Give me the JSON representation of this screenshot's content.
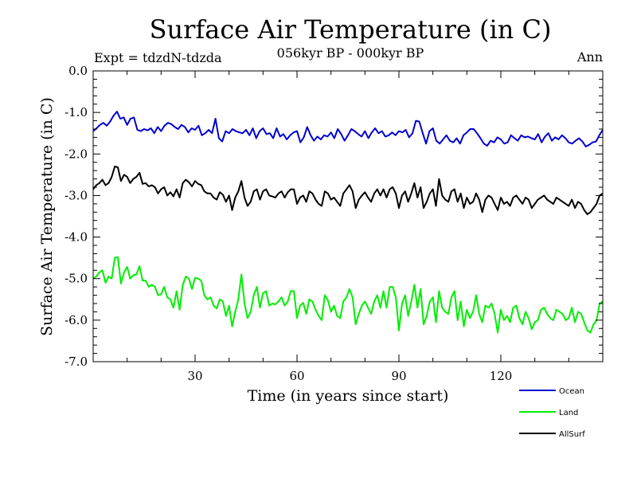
{
  "chart_data": {
    "type": "line",
    "title": "Surface Air Temperature (in C)",
    "subtitle": "056kyr BP - 000kyr BP",
    "left_label": "Expt = tdzdN-tdzda",
    "right_label": "Ann",
    "xlabel": "Time (in years since start)",
    "ylabel": "Surface Air Temperature (in C)",
    "xlim": [
      0,
      150
    ],
    "ylim": [
      -7.0,
      0.0
    ],
    "xticks": [
      30,
      60,
      90,
      120
    ],
    "yticks": [
      0.0,
      -1.0,
      -2.0,
      -3.0,
      -4.0,
      -5.0,
      -6.0,
      -7.0
    ],
    "ytick_labels": [
      "0.0",
      "-1.0",
      "-2.0",
      "-3.0",
      "-4.0",
      "-5.0",
      "-6.0",
      "-7.0"
    ],
    "series": [
      {
        "name": "Ocean",
        "color": "#0000d0",
        "values": [
          -1.45,
          -1.38,
          -1.3,
          -1.25,
          -1.32,
          -1.22,
          -1.08,
          -0.98,
          -1.15,
          -1.12,
          -1.3,
          -1.15,
          -1.12,
          -1.42,
          -1.45,
          -1.4,
          -1.43,
          -1.38,
          -1.5,
          -1.35,
          -1.45,
          -1.32,
          -1.25,
          -1.28,
          -1.35,
          -1.4,
          -1.3,
          -1.35,
          -1.48,
          -1.38,
          -1.42,
          -1.32,
          -1.55,
          -1.5,
          -1.42,
          -1.5,
          -1.15,
          -1.62,
          -1.7,
          -1.45,
          -1.5,
          -1.4,
          -1.45,
          -1.48,
          -1.5,
          -1.42,
          -1.55,
          -1.38,
          -1.62,
          -1.45,
          -1.38,
          -1.52,
          -1.5,
          -1.62,
          -1.38,
          -1.58,
          -1.52,
          -1.65,
          -1.55,
          -1.48,
          -1.45,
          -1.72,
          -1.6,
          -1.35,
          -1.55,
          -1.68,
          -1.58,
          -1.65,
          -1.55,
          -1.58,
          -1.48,
          -1.62,
          -1.4,
          -1.52,
          -1.68,
          -1.55,
          -1.4,
          -1.45,
          -1.52,
          -1.58,
          -1.45,
          -1.62,
          -1.48,
          -1.38,
          -1.5,
          -1.45,
          -1.58,
          -1.55,
          -1.48,
          -1.55,
          -1.45,
          -1.48,
          -1.42,
          -1.6,
          -1.5,
          -1.2,
          -1.22,
          -1.5,
          -1.75,
          -1.45,
          -1.38,
          -1.68,
          -1.75,
          -1.65,
          -1.55,
          -1.68,
          -1.72,
          -1.62,
          -1.75,
          -1.55,
          -1.48,
          -1.4,
          -1.4,
          -1.5,
          -1.62,
          -1.75,
          -1.8,
          -1.68,
          -1.72,
          -1.6,
          -1.65,
          -1.75,
          -1.72,
          -1.55,
          -1.62,
          -1.68,
          -1.55,
          -1.6,
          -1.58,
          -1.62,
          -1.65,
          -1.52,
          -1.72,
          -1.58,
          -1.5,
          -1.68,
          -1.6,
          -1.65,
          -1.55,
          -1.62,
          -1.72,
          -1.75,
          -1.68,
          -1.62,
          -1.7,
          -1.82,
          -1.78,
          -1.72,
          -1.7,
          -1.55,
          -1.42
        ]
      },
      {
        "name": "Land",
        "color": "#00ee00",
        "values": [
          -5.0,
          -4.95,
          -4.85,
          -4.8,
          -5.1,
          -4.95,
          -5.0,
          -4.5,
          -4.48,
          -5.12,
          -4.85,
          -4.72,
          -5.0,
          -4.92,
          -4.9,
          -4.7,
          -5.05,
          -5.05,
          -5.2,
          -5.15,
          -5.2,
          -5.4,
          -5.38,
          -5.2,
          -5.45,
          -5.5,
          -5.7,
          -5.3,
          -5.75,
          -5.15,
          -4.95,
          -5.0,
          -5.25,
          -4.98,
          -5.0,
          -5.05,
          -5.4,
          -5.5,
          -5.45,
          -5.65,
          -5.72,
          -5.5,
          -5.55,
          -5.9,
          -5.65,
          -6.15,
          -5.8,
          -5.5,
          -4.9,
          -5.6,
          -5.95,
          -5.8,
          -5.4,
          -5.2,
          -5.7,
          -5.35,
          -5.3,
          -5.65,
          -5.6,
          -5.62,
          -5.55,
          -5.45,
          -5.65,
          -5.55,
          -5.3,
          -5.3,
          -5.95,
          -5.65,
          -5.58,
          -5.85,
          -5.5,
          -5.55,
          -5.75,
          -5.9,
          -6.0,
          -5.4,
          -5.52,
          -5.8,
          -5.65,
          -5.9,
          -5.95,
          -5.55,
          -5.45,
          -5.25,
          -5.45,
          -6.1,
          -5.85,
          -5.65,
          -5.55,
          -5.7,
          -5.85,
          -5.55,
          -5.4,
          -5.7,
          -5.3,
          -5.7,
          -5.2,
          -5.2,
          -5.45,
          -6.25,
          -5.6,
          -5.4,
          -5.9,
          -5.55,
          -5.15,
          -5.7,
          -5.25,
          -6.1,
          -5.9,
          -5.55,
          -5.45,
          -6.05,
          -5.3,
          -5.7,
          -5.8,
          -5.85,
          -5.45,
          -5.3,
          -6.0,
          -5.55,
          -6.15,
          -5.75,
          -5.95,
          -5.8,
          -5.4,
          -5.85,
          -6.05,
          -5.65,
          -5.7,
          -5.6,
          -5.85,
          -6.3,
          -5.75,
          -6.0,
          -5.9,
          -6.05,
          -5.7,
          -5.65,
          -5.95,
          -6.1,
          -5.8,
          -5.95,
          -6.22,
          -6.05,
          -6.0,
          -5.75,
          -5.7,
          -5.85,
          -5.95,
          -6.0,
          -5.75,
          -5.8,
          -5.85,
          -6.0,
          -5.95,
          -5.7,
          -6.05,
          -5.8,
          -5.85,
          -6.05,
          -6.25,
          -6.3,
          -6.1,
          -6.0,
          -5.6,
          -5.55
        ]
      },
      {
        "name": "AllSurf",
        "color": "#000000",
        "values": [
          -2.85,
          -2.75,
          -2.7,
          -2.62,
          -2.75,
          -2.7,
          -2.55,
          -2.3,
          -2.32,
          -2.65,
          -2.5,
          -2.55,
          -2.7,
          -2.6,
          -2.55,
          -2.45,
          -2.72,
          -2.7,
          -2.78,
          -2.75,
          -2.8,
          -2.95,
          -2.85,
          -2.8,
          -3.0,
          -2.92,
          -3.02,
          -2.85,
          -3.05,
          -2.7,
          -2.62,
          -2.68,
          -2.78,
          -2.65,
          -2.72,
          -2.75,
          -2.9,
          -2.95,
          -2.95,
          -3.05,
          -3.1,
          -2.92,
          -2.98,
          -3.15,
          -3.0,
          -3.35,
          -3.05,
          -2.9,
          -2.65,
          -3.05,
          -3.25,
          -3.15,
          -2.9,
          -2.85,
          -3.1,
          -2.9,
          -2.85,
          -3.0,
          -3.02,
          -3.05,
          -2.95,
          -2.9,
          -3.05,
          -2.92,
          -2.85,
          -2.85,
          -3.2,
          -3.05,
          -3.0,
          -3.15,
          -2.9,
          -2.95,
          -3.1,
          -3.2,
          -3.25,
          -2.9,
          -2.95,
          -3.1,
          -3.05,
          -3.15,
          -3.25,
          -2.95,
          -2.85,
          -2.75,
          -2.9,
          -3.3,
          -3.1,
          -3.0,
          -2.92,
          -3.05,
          -3.15,
          -2.95,
          -2.85,
          -3.0,
          -2.85,
          -3.05,
          -2.85,
          -2.8,
          -2.95,
          -3.3,
          -3.0,
          -2.9,
          -3.15,
          -2.95,
          -2.7,
          -3.05,
          -2.8,
          -3.3,
          -3.15,
          -2.95,
          -2.85,
          -3.25,
          -2.6,
          -3.0,
          -3.1,
          -3.15,
          -2.9,
          -2.85,
          -3.15,
          -2.95,
          -3.3,
          -3.05,
          -3.2,
          -3.15,
          -2.95,
          -3.1,
          -3.4,
          -3.1,
          -3.0,
          -3.05,
          -3.2,
          -3.35,
          -3.05,
          -3.2,
          -3.15,
          -3.25,
          -3.05,
          -3.0,
          -3.1,
          -3.2,
          -3.05,
          -3.1,
          -3.3,
          -3.2,
          -3.1,
          -3.05,
          -3.0,
          -3.1,
          -3.15,
          -3.2,
          -3.05,
          -3.1,
          -3.15,
          -3.2,
          -3.25,
          -3.1,
          -3.3,
          -3.15,
          -3.2,
          -3.35,
          -3.45,
          -3.4,
          -3.3,
          -3.2,
          -3.0,
          -2.95
        ]
      }
    ]
  }
}
